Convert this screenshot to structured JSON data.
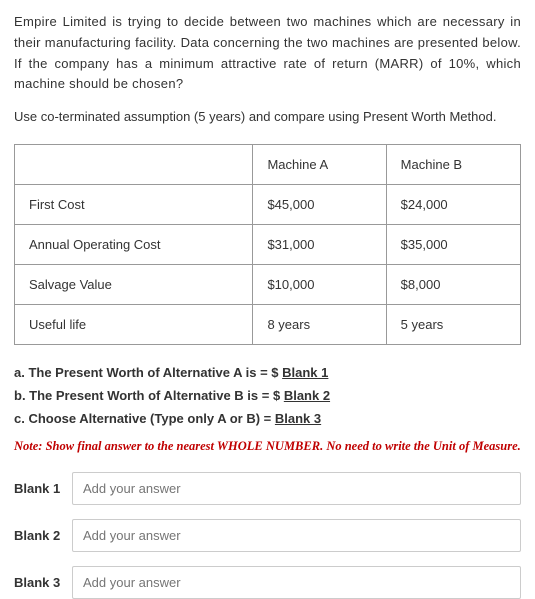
{
  "intro": "Empire Limited is trying to decide between two machines which are necessary in their manufacturing facility. Data concerning the two machines are presented below. If the company has a minimum attractive rate of return (MARR) of 10%, which machine should be chosen?",
  "instruction": "Use co-terminated assumption (5 years) and compare using Present Worth Method.",
  "table": {
    "headers": {
      "colA": "Machine A",
      "colB": "Machine B"
    },
    "rows": [
      {
        "label": "First Cost",
        "a": "$45,000",
        "b": "$24,000"
      },
      {
        "label": "Annual Operating Cost",
        "a": "$31,000",
        "b": "$35,000"
      },
      {
        "label": "Salvage Value",
        "a": "$10,000",
        "b": "$8,000"
      },
      {
        "label": "Useful life",
        "a": "8 years",
        "b": "5 years"
      }
    ]
  },
  "questions": {
    "a_pre": "a. The Present Worth of Alternative A is = $ ",
    "a_u": "Blank 1",
    "b_pre": "b. The Present Worth of Alternative B is = $ ",
    "b_u": "Blank 2",
    "c_pre": "c. Choose Alternative (Type only A or B) = ",
    "c_u": "Blank 3"
  },
  "note": "Note: Show final answer to the nearest WHOLE NUMBER. No need to write the Unit of Measure.",
  "blanks": {
    "b1_label": "Blank 1",
    "b2_label": "Blank 2",
    "b3_label": "Blank 3",
    "placeholder": "Add your answer"
  }
}
